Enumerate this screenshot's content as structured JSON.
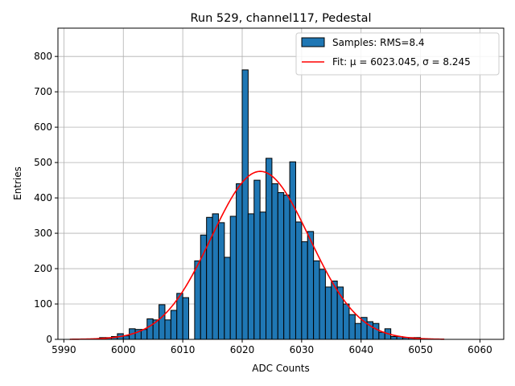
{
  "chart_data": {
    "type": "bar",
    "title": "Run 529, channel117, Pedestal",
    "xlabel": "ADC Counts",
    "ylabel": "Entries",
    "xlim": [
      5989,
      6064
    ],
    "ylim": [
      0,
      880
    ],
    "xticks": [
      5990,
      6000,
      6010,
      6020,
      6030,
      6040,
      6050,
      6060
    ],
    "yticks": [
      0,
      100,
      200,
      300,
      400,
      500,
      600,
      700,
      800
    ],
    "grid": true,
    "legend_position": "top-right",
    "bin_width": 1,
    "histogram": {
      "name": "Samples: RMS=8.4",
      "color": "#1f77b4",
      "edgecolor": "#000000",
      "bin_starts": [
        5996,
        5997,
        5998,
        5999,
        6000,
        6001,
        6002,
        6003,
        6004,
        6005,
        6006,
        6007,
        6008,
        6009,
        6010,
        6011,
        6012,
        6013,
        6014,
        6015,
        6016,
        6017,
        6018,
        6019,
        6020,
        6021,
        6022,
        6023,
        6024,
        6025,
        6026,
        6027,
        6028,
        6029,
        6030,
        6031,
        6032,
        6033,
        6034,
        6035,
        6036,
        6037,
        6038,
        6039,
        6040,
        6041,
        6042,
        6043,
        6044,
        6045,
        6046,
        6047,
        6048,
        6049
      ],
      "values": [
        5,
        5,
        8,
        16,
        10,
        30,
        28,
        28,
        58,
        55,
        98,
        55,
        82,
        130,
        118,
        0,
        222,
        295,
        345,
        355,
        330,
        232,
        348,
        440,
        762,
        355,
        450,
        360,
        512,
        440,
        415,
        408,
        502,
        332,
        276,
        305,
        222,
        198,
        148,
        165,
        148,
        100,
        70,
        45,
        62,
        50,
        45,
        20,
        30,
        8,
        8,
        5,
        5,
        5
      ]
    },
    "fit": {
      "name": "Fit: μ = 6023.045, σ = 8.245",
      "color": "#ff0000",
      "mu": 6023.045,
      "sigma": 8.245,
      "amplitude": 475,
      "x_range": [
        5991,
        6054
      ]
    }
  }
}
